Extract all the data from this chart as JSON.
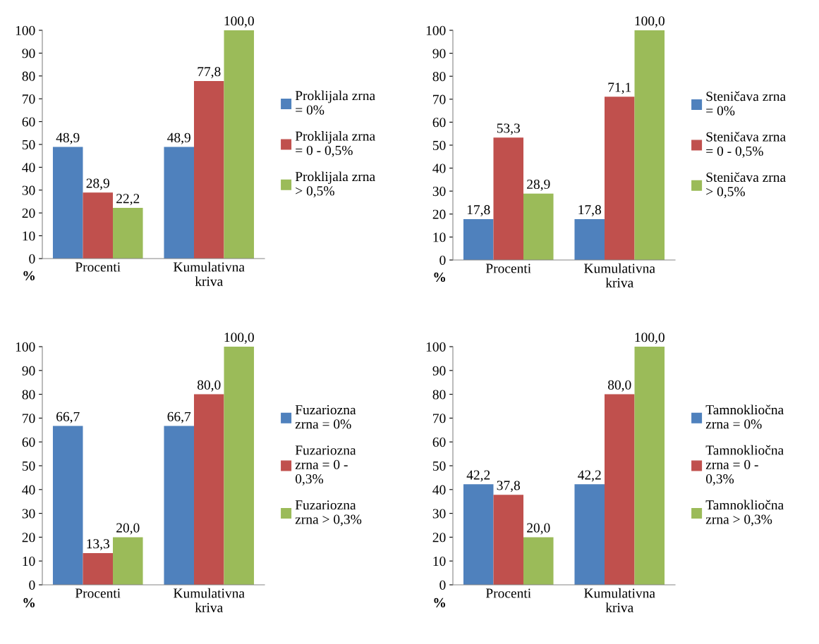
{
  "chart_data": [
    {
      "type": "bar",
      "categories": [
        "Procenti",
        "Kumulativna\nkriva"
      ],
      "ylim": [
        0,
        100
      ],
      "yticks": [
        0,
        10,
        20,
        30,
        40,
        50,
        60,
        70,
        80,
        90,
        100
      ],
      "grid": false,
      "legend": "right",
      "annotations": [
        "%"
      ],
      "series": [
        {
          "name": "Proklijala zrna\n= 0%",
          "color": "#4f81bd",
          "values": [
            48.9,
            48.9
          ],
          "value_labels": [
            "48,9",
            "48,9"
          ]
        },
        {
          "name": "Proklijala zrna\n= 0 - 0,5%",
          "color": "#c0504d",
          "values": [
            28.9,
            77.8
          ],
          "value_labels": [
            "28,9",
            "77,8"
          ]
        },
        {
          "name": "Proklijala zrna\n> 0,5%",
          "color": "#9bbb59",
          "values": [
            22.2,
            100.0
          ],
          "value_labels": [
            "22,2",
            "100,0"
          ]
        }
      ]
    },
    {
      "type": "bar",
      "categories": [
        "Procenti",
        "Kumulativna\nkriva"
      ],
      "ylim": [
        0,
        100
      ],
      "yticks": [
        0,
        10,
        20,
        30,
        40,
        50,
        60,
        70,
        80,
        90,
        100
      ],
      "grid": false,
      "legend": "right",
      "annotations": [
        "%"
      ],
      "series": [
        {
          "name": "Steničava zrna\n= 0%",
          "color": "#4f81bd",
          "values": [
            17.8,
            17.8
          ],
          "value_labels": [
            "17,8",
            "17,8"
          ]
        },
        {
          "name": "Steničava zrna\n= 0 - 0,5%",
          "color": "#c0504d",
          "values": [
            53.3,
            71.1
          ],
          "value_labels": [
            "53,3",
            "71,1"
          ]
        },
        {
          "name": "Steničava zrna\n> 0,5%",
          "color": "#9bbb59",
          "values": [
            28.9,
            100.0
          ],
          "value_labels": [
            "28,9",
            "100,0"
          ]
        }
      ]
    },
    {
      "type": "bar",
      "categories": [
        "Procenti",
        "Kumulativna\nkriva"
      ],
      "ylim": [
        0,
        100
      ],
      "yticks": [
        0,
        10,
        20,
        30,
        40,
        50,
        60,
        70,
        80,
        90,
        100
      ],
      "grid": false,
      "legend": "right",
      "annotations": [
        "%"
      ],
      "series": [
        {
          "name": "Fuzariozna\nzrna = 0%",
          "color": "#4f81bd",
          "values": [
            66.7,
            66.7
          ],
          "value_labels": [
            "66,7",
            "66,7"
          ]
        },
        {
          "name": "Fuzariozna\nzrna = 0 -\n0,3%",
          "color": "#c0504d",
          "values": [
            13.3,
            80.0
          ],
          "value_labels": [
            "13,3",
            "80,0"
          ]
        },
        {
          "name": "Fuzariozna\nzrna > 0,3%",
          "color": "#9bbb59",
          "values": [
            20.0,
            100.0
          ],
          "value_labels": [
            "20,0",
            "100,0"
          ]
        }
      ]
    },
    {
      "type": "bar",
      "categories": [
        "Procenti",
        "Kumulativna\nkriva"
      ],
      "ylim": [
        0,
        100
      ],
      "yticks": [
        0,
        10,
        20,
        30,
        40,
        50,
        60,
        70,
        80,
        90,
        100
      ],
      "grid": false,
      "legend": "right",
      "annotations": [
        "%"
      ],
      "series": [
        {
          "name": "Tamnokliočna\nzrna = 0%",
          "color": "#4f81bd",
          "values": [
            42.2,
            42.2
          ],
          "value_labels": [
            "42,2",
            "42,2"
          ]
        },
        {
          "name": "Tamnokliočna\nzrna = 0 -\n0,3%",
          "color": "#c0504d",
          "values": [
            37.8,
            80.0
          ],
          "value_labels": [
            "37,8",
            "80,0"
          ]
        },
        {
          "name": "Tamnokliočna\nzrna > 0,3%",
          "color": "#9bbb59",
          "values": [
            20.0,
            100.0
          ],
          "value_labels": [
            "20,0",
            "100,0"
          ]
        }
      ]
    }
  ]
}
